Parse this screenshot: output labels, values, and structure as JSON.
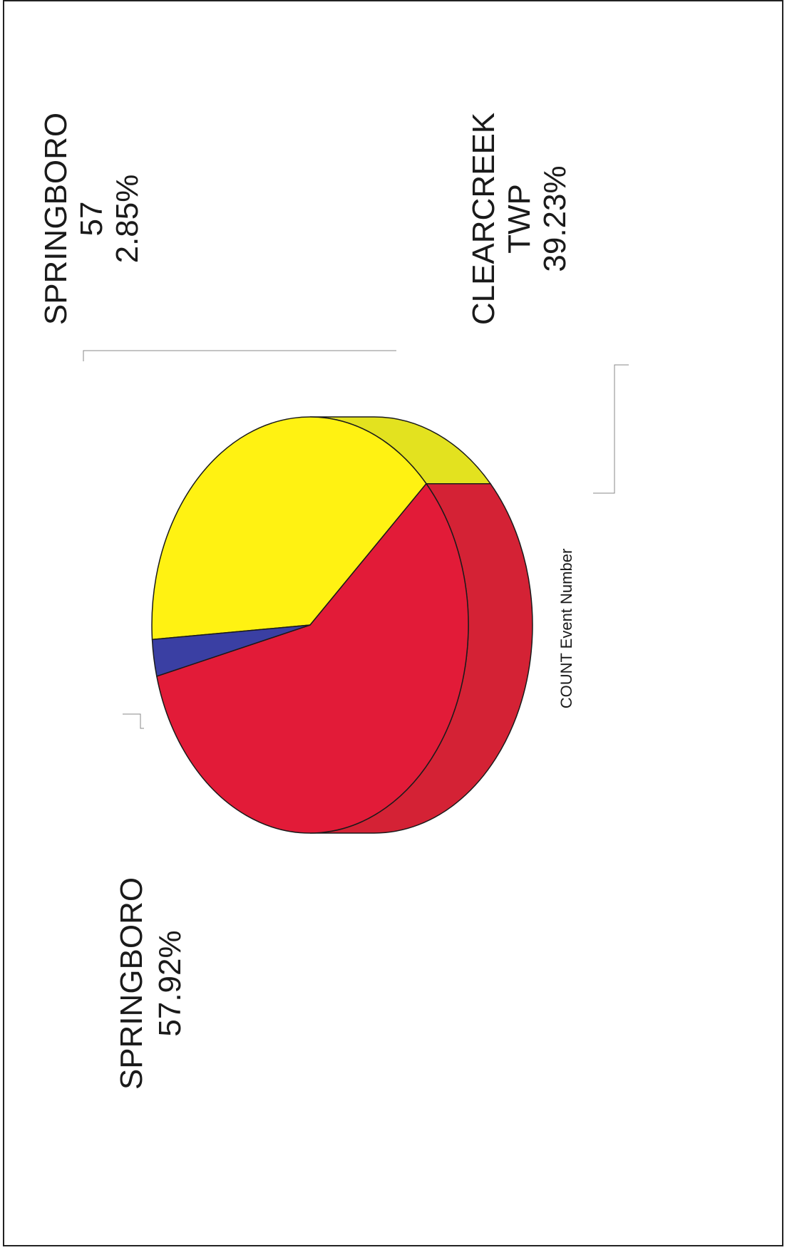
{
  "chart_data": {
    "type": "pie",
    "title": "",
    "caption": "COUNT Event Number",
    "slices": [
      {
        "label_lines": [
          "SPRINGBORO",
          "57.92%"
        ],
        "percent": 57.92,
        "color": "#E21B38",
        "side_color": "#D42235"
      },
      {
        "label_lines": [
          "SPRINGBORO",
          "57",
          "2.85%"
        ],
        "count": 57,
        "percent": 2.85,
        "color": "#3A3FA3"
      },
      {
        "label_lines": [
          "CLEARCREEK",
          "TWP",
          "39.23%"
        ],
        "percent": 39.23,
        "color": "#FFF212",
        "side_color": "#E3E21F"
      }
    ]
  }
}
